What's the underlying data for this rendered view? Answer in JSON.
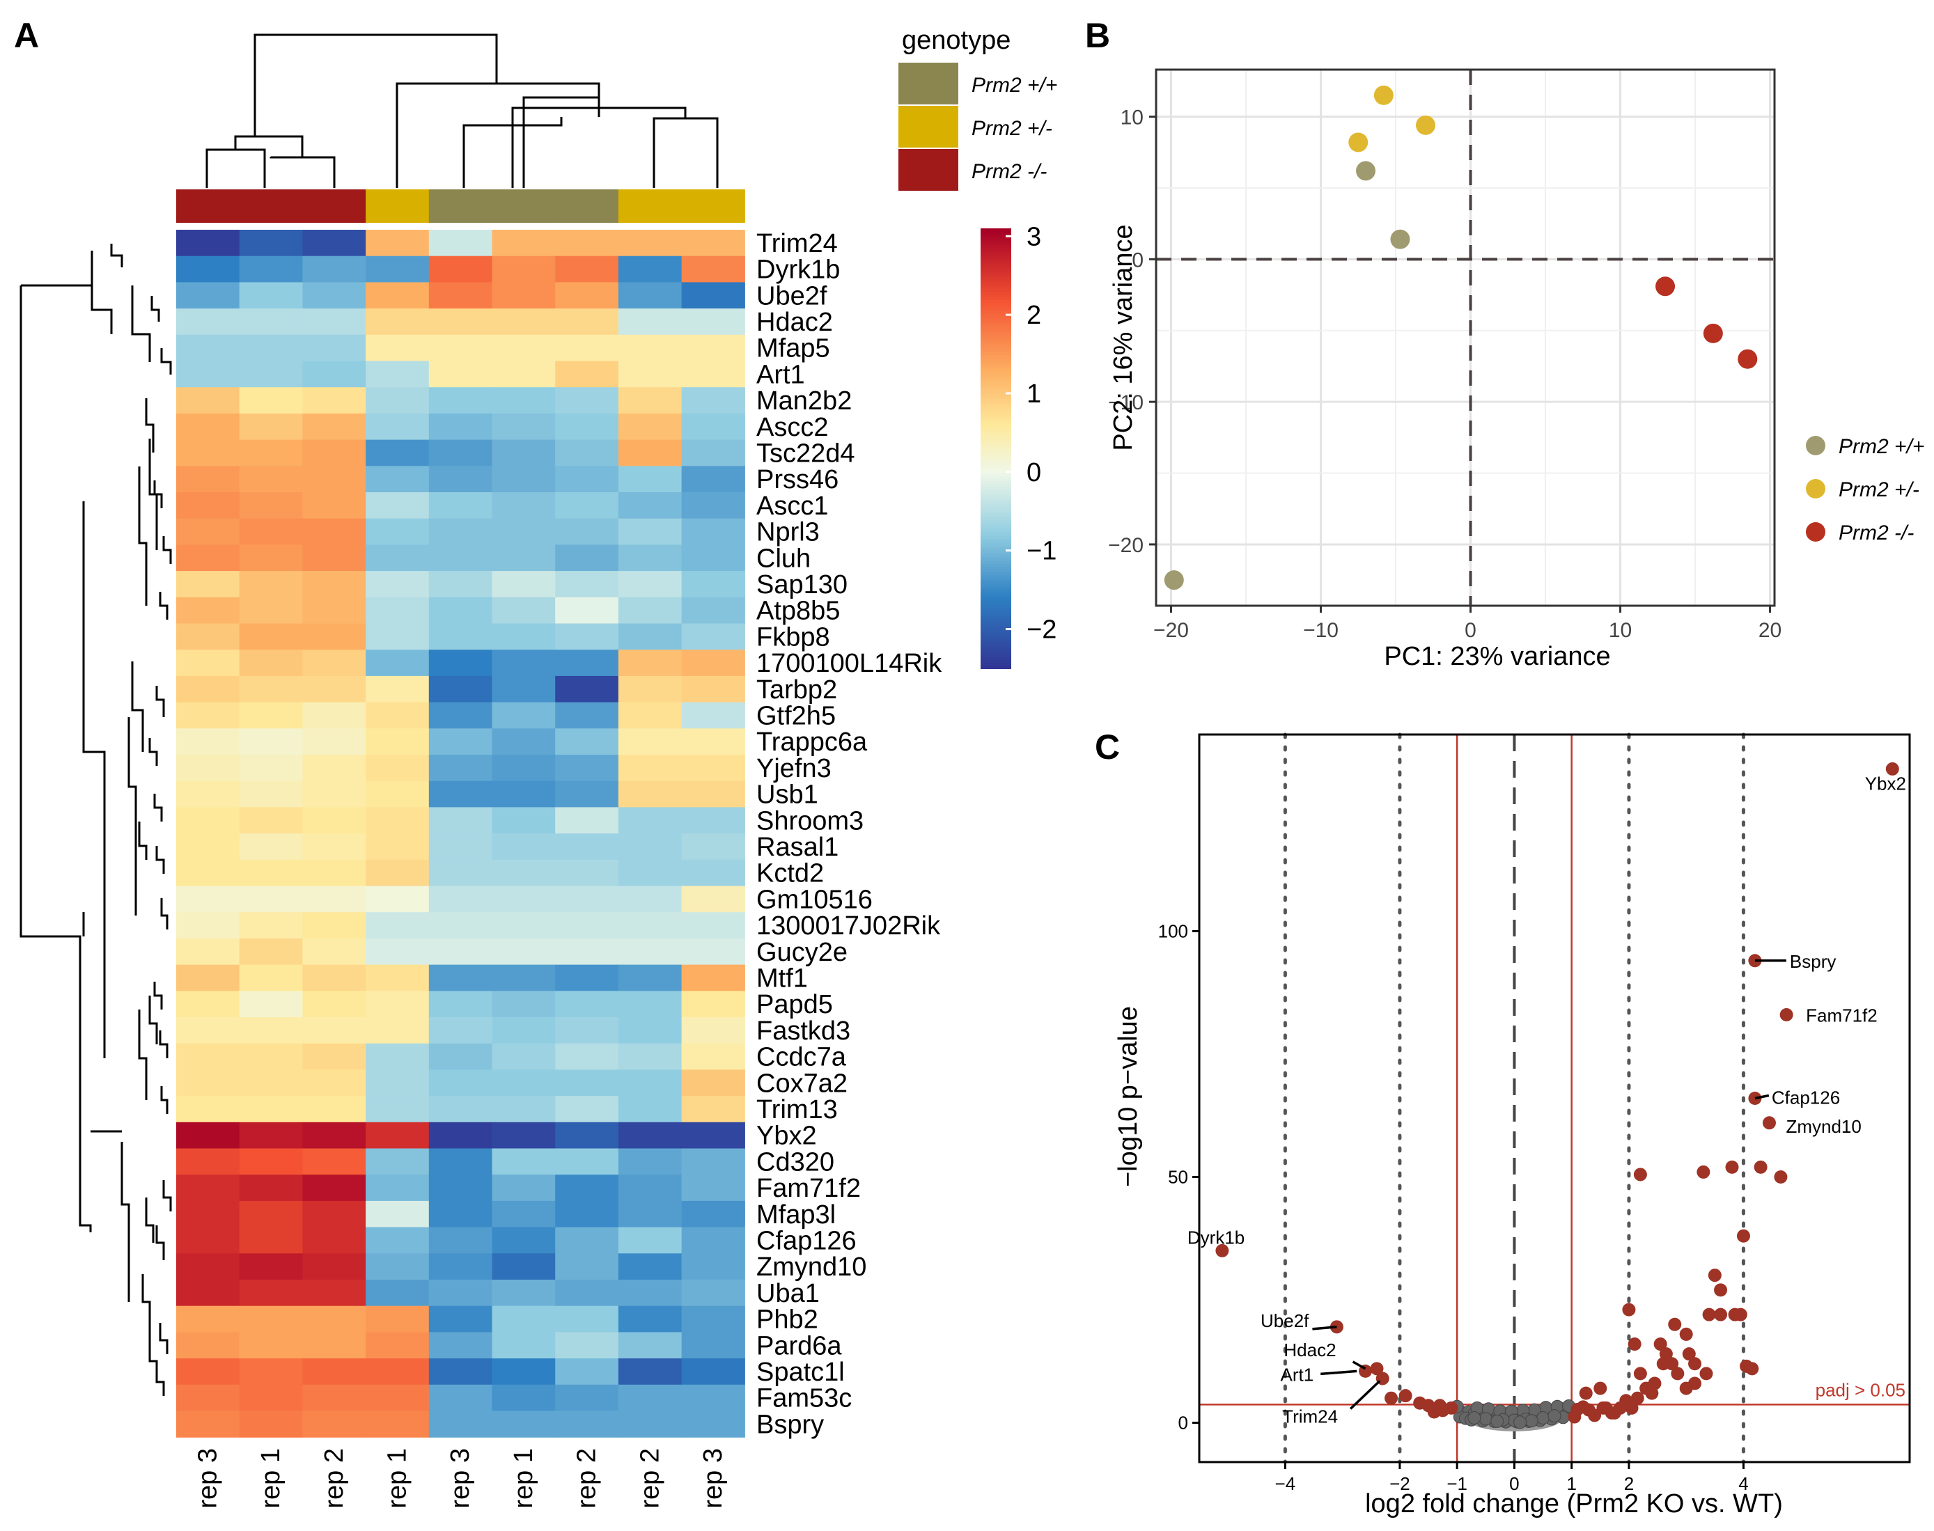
{
  "panels": {
    "a": "A",
    "b": "B",
    "c": "C"
  },
  "colors": {
    "wt": "#8b8550",
    "het": "#d8b000",
    "ko": "#a01a1a",
    "pca_wt": "#a09a70",
    "pca_het": "#e0b830",
    "pca_ko": "#b83020",
    "volcano_sig": "#9e3326",
    "volcano_nonsig": "#666666",
    "threshold": "#c0392b"
  },
  "legend": {
    "title": "genotype",
    "items": [
      {
        "label": "Prm2 +/+",
        "color": "#8b8550"
      },
      {
        "label": "Prm2 +/-",
        "color": "#d8b000"
      },
      {
        "label": "Prm2 -/-",
        "color": "#a01a1a"
      }
    ]
  },
  "chart_data": [
    {
      "type": "heatmap",
      "columns": [
        {
          "label": "rep 3",
          "genotype": "Prm2 -/-"
        },
        {
          "label": "rep 1",
          "genotype": "Prm2 -/-"
        },
        {
          "label": "rep 2",
          "genotype": "Prm2 -/-"
        },
        {
          "label": "rep 1",
          "genotype": "Prm2 +/-"
        },
        {
          "label": "rep 3",
          "genotype": "Prm2 +/+"
        },
        {
          "label": "rep 1",
          "genotype": "Prm2 +/+"
        },
        {
          "label": "rep 2",
          "genotype": "Prm2 +/+"
        },
        {
          "label": "rep 2",
          "genotype": "Prm2 +/-"
        },
        {
          "label": "rep 3",
          "genotype": "Prm2 +/-"
        }
      ],
      "rows": [
        "Trim24",
        "Dyrk1b",
        "Ube2f",
        "Hdac2",
        "Mfap5",
        "Art1",
        "Man2b2",
        "Ascc2",
        "Tsc22d4",
        "Prss46",
        "Ascc1",
        "Nprl3",
        "Cluh",
        "Sap130",
        "Atp8b5",
        "Fkbp8",
        "1700100L14Rik",
        "Tarbp2",
        "Gtf2h5",
        "Trappc6a",
        "Yjefn3",
        "Usb1",
        "Shroom3",
        "Rasal1",
        "Kctd2",
        "Gm10516",
        "1300017J02Rik",
        "Gucy2e",
        "Mtf1",
        "Papd5",
        "Fastkd3",
        "Ccdc7a",
        "Cox7a2",
        "Trim13",
        "Ybx2",
        "Cd320",
        "Fam71f2",
        "Mfap3l",
        "Cfap126",
        "Zmynd10",
        "Uba1",
        "Phb2",
        "Pard6a",
        "Spatc1l",
        "Fam53c",
        "Bspry"
      ],
      "values": [
        [
          -2.4,
          -2.0,
          -2.2,
          1.2,
          -0.3,
          1.2,
          1.2,
          1.2,
          1.2
        ],
        [
          -1.6,
          -1.4,
          -1.2,
          -1.3,
          2.0,
          1.6,
          1.8,
          -1.5,
          1.7
        ],
        [
          -1.2,
          -0.8,
          -1.0,
          1.3,
          1.8,
          1.6,
          1.4,
          -1.3,
          -1.7
        ],
        [
          -0.5,
          -0.5,
          -0.5,
          0.8,
          0.8,
          0.8,
          0.8,
          -0.3,
          -0.3
        ],
        [
          -0.7,
          -0.7,
          -0.7,
          0.5,
          0.5,
          0.5,
          0.5,
          0.5,
          0.5
        ],
        [
          -0.7,
          -0.7,
          -0.8,
          -0.5,
          0.5,
          0.5,
          0.9,
          0.5,
          0.5
        ],
        [
          1.0,
          0.6,
          0.7,
          -0.6,
          -0.8,
          -0.8,
          -0.7,
          0.8,
          -0.7
        ],
        [
          1.3,
          1.0,
          1.2,
          -0.7,
          -1.0,
          -0.9,
          -0.8,
          1.1,
          -0.8
        ],
        [
          1.3,
          1.3,
          1.4,
          -1.4,
          -1.3,
          -1.1,
          -0.9,
          1.3,
          -0.9
        ],
        [
          1.5,
          1.4,
          1.4,
          -1.0,
          -1.2,
          -1.1,
          -1.0,
          -0.8,
          -1.3
        ],
        [
          1.6,
          1.5,
          1.4,
          -0.5,
          -0.8,
          -0.9,
          -0.8,
          -1.0,
          -1.2
        ],
        [
          1.5,
          1.6,
          1.6,
          -0.8,
          -0.9,
          -0.9,
          -0.9,
          -0.7,
          -1.0
        ],
        [
          1.6,
          1.5,
          1.6,
          -0.9,
          -0.9,
          -0.9,
          -1.1,
          -0.9,
          -1.0
        ],
        [
          0.8,
          1.1,
          1.2,
          -0.4,
          -0.6,
          -0.3,
          -0.5,
          -0.4,
          -0.8
        ],
        [
          1.2,
          1.1,
          1.2,
          -0.5,
          -0.8,
          -0.6,
          -0.1,
          -0.6,
          -0.9
        ],
        [
          1.0,
          1.3,
          1.3,
          -0.5,
          -0.8,
          -0.8,
          -0.7,
          -0.9,
          -0.7
        ],
        [
          0.7,
          1.0,
          0.9,
          -1.0,
          -1.6,
          -1.4,
          -1.4,
          1.1,
          1.2
        ],
        [
          0.9,
          0.8,
          0.8,
          0.5,
          -1.8,
          -1.4,
          -2.3,
          0.8,
          0.9
        ],
        [
          0.7,
          0.6,
          0.4,
          0.7,
          -1.4,
          -1.0,
          -1.3,
          0.7,
          -0.4
        ],
        [
          0.3,
          0.2,
          0.3,
          0.6,
          -1.0,
          -1.2,
          -0.9,
          0.5,
          0.5
        ],
        [
          0.4,
          0.3,
          0.5,
          0.7,
          -1.2,
          -1.3,
          -1.2,
          0.7,
          0.7
        ],
        [
          0.5,
          0.4,
          0.5,
          0.6,
          -1.4,
          -1.4,
          -1.3,
          0.8,
          0.8
        ],
        [
          0.6,
          0.7,
          0.6,
          0.7,
          -0.6,
          -0.8,
          -0.3,
          -0.7,
          -0.7
        ],
        [
          0.6,
          0.4,
          0.5,
          0.7,
          -0.6,
          -0.7,
          -0.7,
          -0.7,
          -0.6
        ],
        [
          0.6,
          0.6,
          0.6,
          0.8,
          -0.6,
          -0.6,
          -0.6,
          -0.7,
          -0.7
        ],
        [
          0.2,
          0.2,
          0.2,
          0.1,
          -0.4,
          -0.4,
          -0.4,
          -0.4,
          0.4
        ],
        [
          0.3,
          0.5,
          0.6,
          -0.3,
          -0.3,
          -0.3,
          -0.3,
          -0.3,
          -0.3
        ],
        [
          0.5,
          0.8,
          0.5,
          -0.2,
          -0.2,
          -0.2,
          -0.2,
          -0.2,
          -0.2
        ],
        [
          1.0,
          0.6,
          0.8,
          0.7,
          -1.3,
          -1.3,
          -1.4,
          -1.3,
          1.3
        ],
        [
          0.6,
          0.2,
          0.6,
          0.5,
          -0.8,
          -0.9,
          -0.8,
          -0.8,
          0.6
        ],
        [
          0.5,
          0.5,
          0.5,
          0.5,
          -0.7,
          -0.8,
          -0.7,
          -0.8,
          0.4
        ],
        [
          0.7,
          0.7,
          0.8,
          -0.6,
          -0.9,
          -0.7,
          -0.5,
          -0.6,
          0.5
        ],
        [
          0.7,
          0.7,
          0.7,
          -0.6,
          -0.8,
          -0.8,
          -0.8,
          -0.8,
          1.0
        ],
        [
          0.6,
          0.6,
          0.6,
          -0.6,
          -0.7,
          -0.7,
          -0.5,
          -0.8,
          0.8
        ],
        [
          3.0,
          2.8,
          2.9,
          2.6,
          -2.4,
          -2.3,
          -2.0,
          -2.3,
          -2.3
        ],
        [
          2.3,
          2.2,
          2.1,
          -0.9,
          -1.5,
          -0.8,
          -0.8,
          -1.2,
          -1.1
        ],
        [
          2.6,
          2.7,
          2.9,
          -1.0,
          -1.5,
          -1.1,
          -1.5,
          -1.3,
          -1.1
        ],
        [
          2.6,
          2.4,
          2.6,
          -0.2,
          -1.5,
          -1.3,
          -1.5,
          -1.3,
          -1.4
        ],
        [
          2.6,
          2.4,
          2.6,
          -1.0,
          -1.3,
          -1.5,
          -1.1,
          -0.8,
          -1.2
        ],
        [
          2.7,
          2.8,
          2.7,
          -1.1,
          -1.4,
          -1.8,
          -1.1,
          -1.5,
          -1.2
        ],
        [
          2.7,
          2.6,
          2.6,
          -1.3,
          -1.2,
          -1.1,
          -1.2,
          -1.2,
          -1.1
        ],
        [
          1.4,
          1.4,
          1.4,
          1.5,
          -1.5,
          -0.8,
          -0.8,
          -1.5,
          -1.3
        ],
        [
          1.5,
          1.4,
          1.4,
          1.6,
          -1.2,
          -0.8,
          -0.6,
          -0.9,
          -1.3
        ],
        [
          2.0,
          1.9,
          2.0,
          2.0,
          -1.8,
          -1.6,
          -1.0,
          -2.0,
          -1.7
        ],
        [
          1.8,
          1.9,
          1.8,
          1.8,
          -1.2,
          -1.4,
          -1.3,
          -1.2,
          -1.2
        ],
        [
          1.7,
          1.8,
          1.7,
          1.7,
          -1.2,
          -1.2,
          -1.2,
          -1.2,
          -1.2
        ]
      ],
      "scale": {
        "min": -2.5,
        "max": 3.1,
        "ticks": [
          3,
          2,
          1,
          0,
          -1,
          -2
        ],
        "tick_labels": [
          "3",
          "2",
          "1",
          "0",
          "−1",
          "−2"
        ]
      }
    },
    {
      "type": "scatter",
      "xlabel": "PC1: 23% variance",
      "ylabel": "PC2: 16% variance",
      "xlim": [
        -21,
        20.3
      ],
      "ylim": [
        -24.3,
        13.3
      ],
      "xticks": [
        -20,
        -10,
        0,
        10,
        20
      ],
      "xtick_labels": [
        "−20",
        "−10",
        "0",
        "10",
        "20"
      ],
      "yticks": [
        10,
        0,
        -10,
        -20
      ],
      "ytick_labels": [
        "10",
        "0",
        "−10",
        "−20"
      ],
      "points": [
        {
          "x": -5.8,
          "y": 11.5,
          "group": "Prm2 +/-"
        },
        {
          "x": -7.5,
          "y": 8.2,
          "group": "Prm2 +/-"
        },
        {
          "x": -3.0,
          "y": 9.4,
          "group": "Prm2 +/-"
        },
        {
          "x": -7.0,
          "y": 6.2,
          "group": "Prm2 +/+"
        },
        {
          "x": -4.7,
          "y": 1.4,
          "group": "Prm2 +/+"
        },
        {
          "x": -19.8,
          "y": -22.5,
          "group": "Prm2 +/+"
        },
        {
          "x": 13.0,
          "y": -1.9,
          "group": "Prm2 -/-"
        },
        {
          "x": 16.2,
          "y": -5.2,
          "group": "Prm2 -/-"
        },
        {
          "x": 18.5,
          "y": -7.0,
          "group": "Prm2 -/-"
        }
      ],
      "legend": [
        "Prm2 +/+",
        "Prm2 +/-",
        "Prm2 -/-"
      ]
    },
    {
      "type": "scatter",
      "subtype": "volcano",
      "xlabel": "log2 fold change (Prm2 KO vs. WT)",
      "ylabel": "−log10 p−value",
      "xlim": [
        -5.5,
        6.9
      ],
      "ylim": [
        -8,
        140
      ],
      "xticks": [
        -4,
        -2,
        -1,
        0,
        1,
        2,
        4
      ],
      "xtick_labels": [
        "−4",
        "−2",
        "−1",
        "0",
        "1",
        "2",
        "4"
      ],
      "yticks": [
        0,
        50,
        100
      ],
      "ytick_labels": [
        "0",
        "50",
        "100"
      ],
      "threshold_label": "padj > 0.05",
      "threshold_y": 3.7,
      "significant_points": [
        [
          6.6,
          133
        ],
        [
          4.2,
          94
        ],
        [
          4.75,
          83
        ],
        [
          4.2,
          66
        ],
        [
          4.45,
          61
        ],
        [
          2.2,
          50.5
        ],
        [
          3.3,
          51
        ],
        [
          3.8,
          52
        ],
        [
          4.3,
          52
        ],
        [
          4.65,
          50
        ],
        [
          4.0,
          38
        ],
        [
          3.5,
          30
        ],
        [
          3.6,
          27
        ],
        [
          3.4,
          22
        ],
        [
          3.6,
          22
        ],
        [
          3.85,
          22
        ],
        [
          3.95,
          22
        ],
        [
          2.0,
          23
        ],
        [
          2.8,
          20
        ],
        [
          3.0,
          18
        ],
        [
          2.55,
          16
        ],
        [
          2.65,
          14
        ],
        [
          2.6,
          12
        ],
        [
          2.75,
          12
        ],
        [
          2.85,
          10
        ],
        [
          3.35,
          10
        ],
        [
          3.05,
          14
        ],
        [
          3.15,
          12
        ],
        [
          3.15,
          8
        ],
        [
          3.0,
          7
        ],
        [
          2.45,
          8
        ],
        [
          4.05,
          11.5
        ],
        [
          4.15,
          11
        ],
        [
          2.2,
          10
        ],
        [
          2.1,
          16
        ],
        [
          2.4,
          6
        ],
        [
          2.3,
          7
        ],
        [
          2.15,
          5
        ],
        [
          1.95,
          4.5
        ],
        [
          2.05,
          3
        ],
        [
          1.75,
          2
        ],
        [
          1.5,
          7
        ],
        [
          1.25,
          6
        ],
        [
          1.6,
          3
        ],
        [
          -5.1,
          35
        ],
        [
          -3.1,
          19.5
        ],
        [
          -2.3,
          9
        ],
        [
          -2.6,
          10.5
        ],
        [
          -2.4,
          11
        ],
        [
          -2.15,
          5
        ],
        [
          -1.9,
          5.5
        ],
        [
          -1.65,
          4
        ],
        [
          -1.5,
          3.5
        ],
        [
          -1.3,
          3.5
        ],
        [
          -1.1,
          3
        ],
        [
          -1.25,
          2.5
        ],
        [
          -1.4,
          2.2
        ],
        [
          1.3,
          2.6
        ],
        [
          1.55,
          3
        ],
        [
          1.85,
          3
        ],
        [
          1.4,
          1.5
        ],
        [
          1.7,
          2
        ],
        [
          1.1,
          2.7
        ],
        [
          1.2,
          3.2
        ],
        [
          1.05,
          1.2
        ]
      ],
      "nonsignificant_points": [
        [
          -0.9,
          2
        ],
        [
          -0.8,
          2.2
        ],
        [
          -0.7,
          1.8
        ],
        [
          -0.6,
          1.5
        ],
        [
          -0.5,
          2.1
        ],
        [
          -0.4,
          1.6
        ],
        [
          -0.3,
          1.3
        ],
        [
          -0.2,
          1.1
        ],
        [
          -0.1,
          1.4
        ],
        [
          0.0,
          1.2
        ],
        [
          0.1,
          1.5
        ],
        [
          0.2,
          1.7
        ],
        [
          0.3,
          1.9
        ],
        [
          0.4,
          2
        ],
        [
          0.5,
          2.2
        ],
        [
          0.6,
          2.5
        ],
        [
          0.7,
          2.4
        ],
        [
          0.8,
          2.9
        ],
        [
          0.9,
          2.6
        ],
        [
          -0.95,
          1.2
        ],
        [
          -0.85,
          0.9
        ],
        [
          -0.75,
          0.6
        ],
        [
          -0.55,
          0.4
        ],
        [
          -0.35,
          0.3
        ],
        [
          -0.15,
          0.2
        ],
        [
          0.05,
          0.2
        ],
        [
          0.25,
          0.3
        ],
        [
          0.45,
          0.5
        ],
        [
          0.65,
          0.8
        ],
        [
          0.85,
          1.1
        ],
        [
          -0.65,
          3
        ],
        [
          -0.45,
          2.8
        ],
        [
          0.55,
          3.1
        ],
        [
          0.75,
          3.3
        ],
        [
          0.35,
          2.6
        ],
        [
          -0.25,
          2.4
        ],
        [
          0.15,
          2.5
        ],
        [
          -0.05,
          2.3
        ],
        [
          -1.0,
          3.3
        ],
        [
          0.95,
          3.4
        ],
        [
          -0.5,
          0.8
        ],
        [
          0.0,
          0.5
        ],
        [
          0.5,
          1
        ],
        [
          -0.2,
          0.6
        ],
        [
          0.2,
          0.7
        ],
        [
          -0.7,
          1
        ],
        [
          0.7,
          1.4
        ],
        [
          -0.3,
          0.3
        ],
        [
          0.3,
          0.4
        ],
        [
          0.1,
          0.1
        ]
      ],
      "labels": [
        {
          "text": "Ybx2",
          "x": 6.6,
          "y": 133
        },
        {
          "text": "Bspry",
          "x": 4.2,
          "y": 94
        },
        {
          "text": "Fam71f2",
          "x": 4.75,
          "y": 83
        },
        {
          "text": "Cfap126",
          "x": 4.2,
          "y": 66
        },
        {
          "text": "Zmynd10",
          "x": 4.45,
          "y": 61
        },
        {
          "text": "Dyrk1b",
          "x": -5.1,
          "y": 35
        },
        {
          "text": "Ube2f",
          "x": -3.1,
          "y": 19.5
        },
        {
          "text": "Hdac2",
          "x": -2.6,
          "y": 11
        },
        {
          "text": "Art1",
          "x": -2.75,
          "y": 10.5
        },
        {
          "text": "Trim24",
          "x": -2.35,
          "y": 8.5
        }
      ]
    }
  ]
}
